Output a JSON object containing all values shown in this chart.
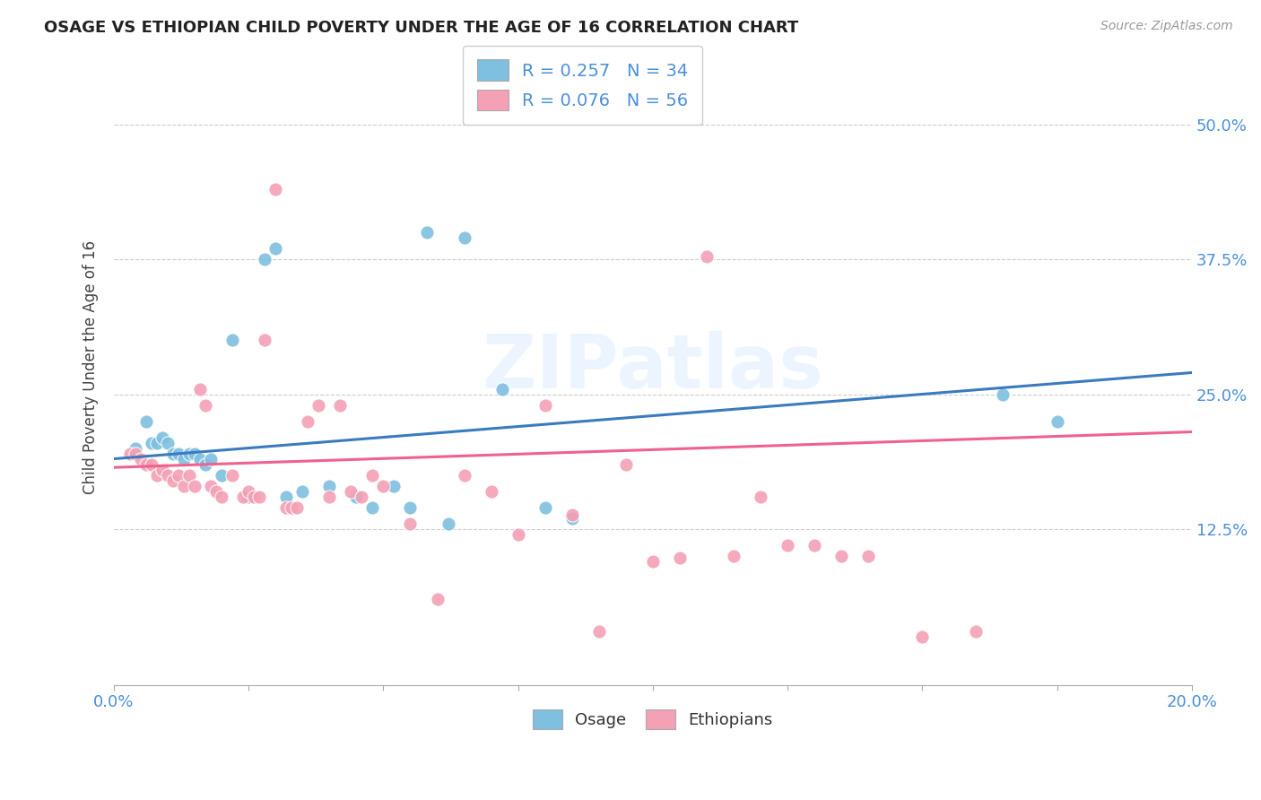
{
  "title": "OSAGE VS ETHIOPIAN CHILD POVERTY UNDER THE AGE OF 16 CORRELATION CHART",
  "source": "Source: ZipAtlas.com",
  "ylabel": "Child Poverty Under the Age of 16",
  "ytick_labels": [
    "50.0%",
    "37.5%",
    "25.0%",
    "12.5%"
  ],
  "ytick_values": [
    0.5,
    0.375,
    0.25,
    0.125
  ],
  "xlim": [
    0.0,
    0.2
  ],
  "ylim": [
    -0.02,
    0.57
  ],
  "watermark": "ZIPatlas",
  "osage_color": "#7fbfdf",
  "ethiopian_color": "#f4a0b5",
  "osage_line_color": "#3a7bbf",
  "ethiopian_line_color": "#f06090",
  "tick_color": "#4a90d9",
  "grid_color": "#cccccc",
  "background_color": "#ffffff",
  "osage_R": 0.257,
  "osage_N": 34,
  "ethiopian_R": 0.076,
  "ethiopian_N": 56,
  "osage_points": [
    [
      0.004,
      0.2
    ],
    [
      0.006,
      0.225
    ],
    [
      0.007,
      0.205
    ],
    [
      0.008,
      0.205
    ],
    [
      0.009,
      0.21
    ],
    [
      0.01,
      0.205
    ],
    [
      0.011,
      0.195
    ],
    [
      0.012,
      0.195
    ],
    [
      0.013,
      0.19
    ],
    [
      0.014,
      0.195
    ],
    [
      0.015,
      0.195
    ],
    [
      0.016,
      0.19
    ],
    [
      0.017,
      0.185
    ],
    [
      0.018,
      0.19
    ],
    [
      0.02,
      0.175
    ],
    [
      0.022,
      0.3
    ],
    [
      0.025,
      0.155
    ],
    [
      0.028,
      0.375
    ],
    [
      0.03,
      0.385
    ],
    [
      0.032,
      0.155
    ],
    [
      0.035,
      0.16
    ],
    [
      0.04,
      0.165
    ],
    [
      0.045,
      0.155
    ],
    [
      0.048,
      0.145
    ],
    [
      0.052,
      0.165
    ],
    [
      0.055,
      0.145
    ],
    [
      0.058,
      0.4
    ],
    [
      0.062,
      0.13
    ],
    [
      0.065,
      0.395
    ],
    [
      0.072,
      0.255
    ],
    [
      0.08,
      0.145
    ],
    [
      0.085,
      0.135
    ],
    [
      0.165,
      0.25
    ],
    [
      0.175,
      0.225
    ]
  ],
  "ethiopian_points": [
    [
      0.003,
      0.195
    ],
    [
      0.004,
      0.195
    ],
    [
      0.005,
      0.19
    ],
    [
      0.006,
      0.185
    ],
    [
      0.007,
      0.185
    ],
    [
      0.008,
      0.175
    ],
    [
      0.009,
      0.18
    ],
    [
      0.01,
      0.175
    ],
    [
      0.011,
      0.17
    ],
    [
      0.012,
      0.175
    ],
    [
      0.013,
      0.165
    ],
    [
      0.014,
      0.175
    ],
    [
      0.015,
      0.165
    ],
    [
      0.016,
      0.255
    ],
    [
      0.017,
      0.24
    ],
    [
      0.018,
      0.165
    ],
    [
      0.019,
      0.16
    ],
    [
      0.02,
      0.155
    ],
    [
      0.022,
      0.175
    ],
    [
      0.024,
      0.155
    ],
    [
      0.025,
      0.16
    ],
    [
      0.026,
      0.155
    ],
    [
      0.027,
      0.155
    ],
    [
      0.028,
      0.3
    ],
    [
      0.03,
      0.44
    ],
    [
      0.032,
      0.145
    ],
    [
      0.033,
      0.145
    ],
    [
      0.034,
      0.145
    ],
    [
      0.036,
      0.225
    ],
    [
      0.038,
      0.24
    ],
    [
      0.04,
      0.155
    ],
    [
      0.042,
      0.24
    ],
    [
      0.044,
      0.16
    ],
    [
      0.046,
      0.155
    ],
    [
      0.048,
      0.175
    ],
    [
      0.05,
      0.165
    ],
    [
      0.055,
      0.13
    ],
    [
      0.06,
      0.06
    ],
    [
      0.065,
      0.175
    ],
    [
      0.07,
      0.16
    ],
    [
      0.075,
      0.12
    ],
    [
      0.08,
      0.24
    ],
    [
      0.085,
      0.138
    ],
    [
      0.09,
      0.03
    ],
    [
      0.095,
      0.185
    ],
    [
      0.1,
      0.095
    ],
    [
      0.105,
      0.098
    ],
    [
      0.11,
      0.378
    ],
    [
      0.115,
      0.1
    ],
    [
      0.12,
      0.155
    ],
    [
      0.125,
      0.11
    ],
    [
      0.13,
      0.11
    ],
    [
      0.135,
      0.1
    ],
    [
      0.14,
      0.1
    ],
    [
      0.15,
      0.025
    ],
    [
      0.16,
      0.03
    ]
  ],
  "osage_line": {
    "x0": 0.0,
    "y0": 0.19,
    "x1": 0.2,
    "y1": 0.27
  },
  "ethiopian_line": {
    "x0": 0.0,
    "y0": 0.182,
    "x1": 0.2,
    "y1": 0.215
  },
  "n_xticks": 9
}
